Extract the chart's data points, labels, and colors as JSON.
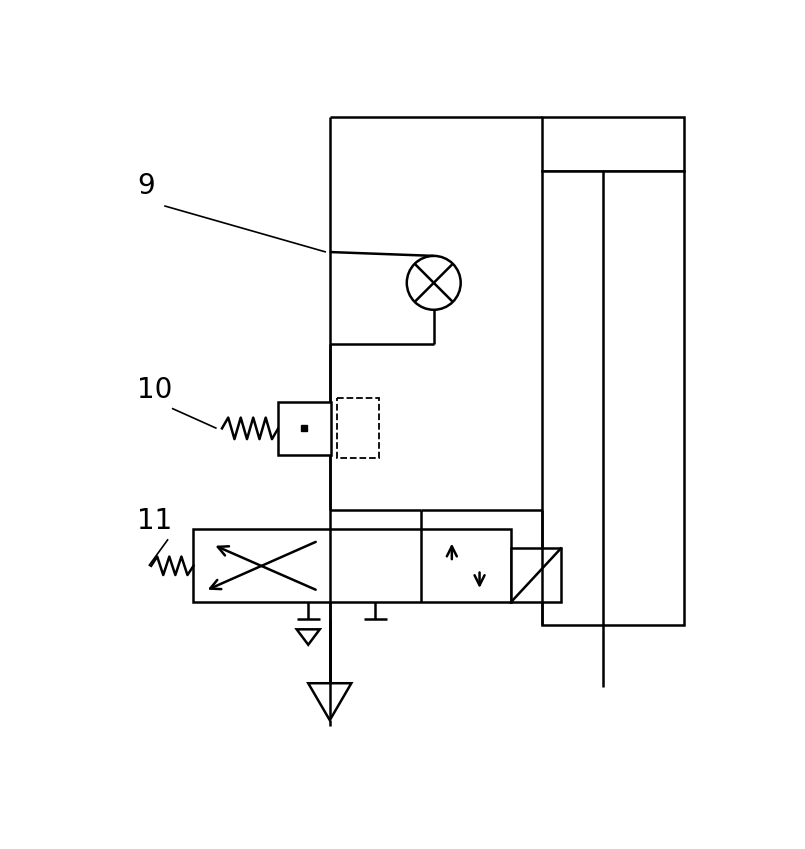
{
  "bg_color": "#ffffff",
  "line_color": "#000000",
  "lw": 1.8,
  "fig_width": 8.05,
  "fig_height": 8.49,
  "dpi": 100
}
